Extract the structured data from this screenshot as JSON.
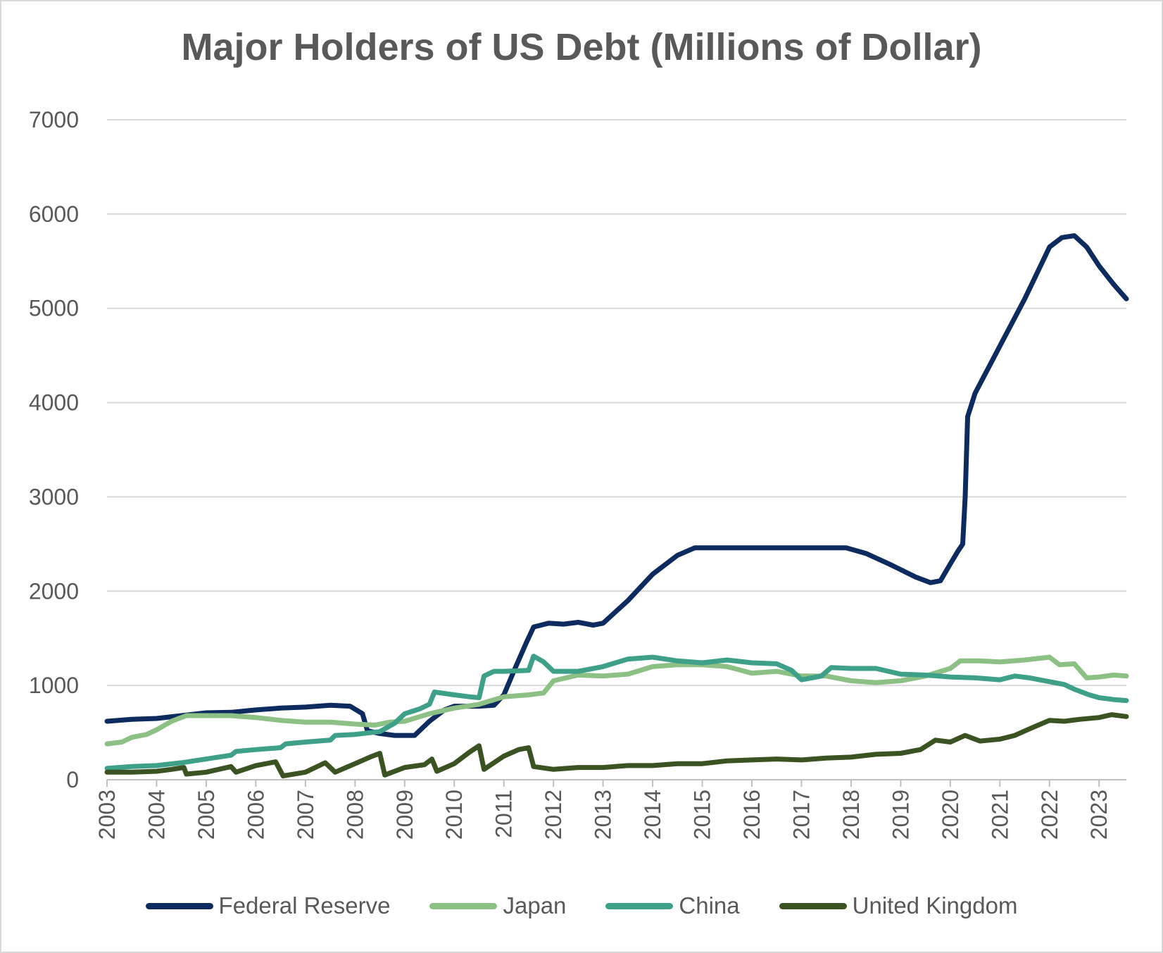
{
  "chart_data": {
    "type": "line",
    "title": "Major Holders of US Debt (Millions of Dollar)",
    "xlabel": "",
    "ylabel": "",
    "ylim": [
      0,
      7000
    ],
    "xlim": [
      2003,
      2023.55
    ],
    "yticks": [
      "0",
      "1000",
      "2000",
      "3000",
      "4000",
      "5000",
      "6000",
      "7000"
    ],
    "xticks": [
      "2003",
      "2004",
      "2005",
      "2006",
      "2007",
      "2008",
      "2009",
      "2010",
      "2011",
      "2012",
      "2013",
      "2014",
      "2015",
      "2016",
      "2017",
      "2018",
      "2019",
      "2020",
      "2021",
      "2022",
      "2023"
    ],
    "grid": true,
    "legend_position": "bottom",
    "series": [
      {
        "name": "Federal Reserve",
        "color": "#0d2b5e",
        "points": [
          [
            2003,
            620
          ],
          [
            2003.5,
            640
          ],
          [
            2004,
            650
          ],
          [
            2004.5,
            680
          ],
          [
            2005,
            710
          ],
          [
            2005.5,
            715
          ],
          [
            2006,
            740
          ],
          [
            2006.5,
            760
          ],
          [
            2007,
            770
          ],
          [
            2007.5,
            790
          ],
          [
            2007.9,
            780
          ],
          [
            2008.15,
            700
          ],
          [
            2008.25,
            520
          ],
          [
            2008.5,
            490
          ],
          [
            2008.8,
            470
          ],
          [
            2009.2,
            470
          ],
          [
            2009.5,
            620
          ],
          [
            2009.8,
            740
          ],
          [
            2010,
            780
          ],
          [
            2010.5,
            780
          ],
          [
            2010.8,
            790
          ],
          [
            2011,
            900
          ],
          [
            2011.2,
            1150
          ],
          [
            2011.45,
            1450
          ],
          [
            2011.6,
            1620
          ],
          [
            2011.9,
            1660
          ],
          [
            2012.2,
            1650
          ],
          [
            2012.5,
            1670
          ],
          [
            2012.8,
            1640
          ],
          [
            2013,
            1660
          ],
          [
            2013.5,
            1900
          ],
          [
            2014,
            2180
          ],
          [
            2014.5,
            2380
          ],
          [
            2014.85,
            2460
          ],
          [
            2015,
            2460
          ],
          [
            2016,
            2460
          ],
          [
            2017,
            2460
          ],
          [
            2017.9,
            2460
          ],
          [
            2018.3,
            2400
          ],
          [
            2018.8,
            2280
          ],
          [
            2019.3,
            2150
          ],
          [
            2019.6,
            2090
          ],
          [
            2019.8,
            2110
          ],
          [
            2020,
            2290
          ],
          [
            2020.15,
            2420
          ],
          [
            2020.25,
            2500
          ],
          [
            2020.3,
            3000
          ],
          [
            2020.35,
            3850
          ],
          [
            2020.5,
            4100
          ],
          [
            2021,
            4600
          ],
          [
            2021.5,
            5100
          ],
          [
            2021.8,
            5430
          ],
          [
            2022,
            5650
          ],
          [
            2022.25,
            5750
          ],
          [
            2022.5,
            5770
          ],
          [
            2022.75,
            5650
          ],
          [
            2023,
            5450
          ],
          [
            2023.3,
            5250
          ],
          [
            2023.55,
            5100
          ]
        ]
      },
      {
        "name": "Japan",
        "color": "#8cc084",
        "points": [
          [
            2003,
            380
          ],
          [
            2003.3,
            400
          ],
          [
            2003.5,
            450
          ],
          [
            2003.8,
            480
          ],
          [
            2004,
            530
          ],
          [
            2004.3,
            620
          ],
          [
            2004.6,
            680
          ],
          [
            2005,
            680
          ],
          [
            2005.5,
            680
          ],
          [
            2006,
            660
          ],
          [
            2006.5,
            630
          ],
          [
            2007,
            610
          ],
          [
            2007.5,
            610
          ],
          [
            2008,
            590
          ],
          [
            2008.4,
            580
          ],
          [
            2008.7,
            610
          ],
          [
            2009,
            620
          ],
          [
            2009.5,
            700
          ],
          [
            2010,
            760
          ],
          [
            2010.5,
            800
          ],
          [
            2011,
            880
          ],
          [
            2011.5,
            900
          ],
          [
            2011.8,
            920
          ],
          [
            2012,
            1050
          ],
          [
            2012.5,
            1110
          ],
          [
            2013,
            1100
          ],
          [
            2013.5,
            1120
          ],
          [
            2014,
            1200
          ],
          [
            2014.5,
            1220
          ],
          [
            2015,
            1220
          ],
          [
            2015.5,
            1200
          ],
          [
            2016,
            1130
          ],
          [
            2016.5,
            1150
          ],
          [
            2017,
            1100
          ],
          [
            2017.5,
            1100
          ],
          [
            2018,
            1050
          ],
          [
            2018.5,
            1030
          ],
          [
            2019,
            1050
          ],
          [
            2019.5,
            1100
          ],
          [
            2020,
            1180
          ],
          [
            2020.2,
            1260
          ],
          [
            2020.6,
            1260
          ],
          [
            2021,
            1250
          ],
          [
            2021.5,
            1270
          ],
          [
            2022,
            1300
          ],
          [
            2022.2,
            1220
          ],
          [
            2022.5,
            1230
          ],
          [
            2022.75,
            1080
          ],
          [
            2023,
            1090
          ],
          [
            2023.3,
            1110
          ],
          [
            2023.55,
            1100
          ]
        ]
      },
      {
        "name": "China",
        "color": "#3fa08a",
        "points": [
          [
            2003,
            120
          ],
          [
            2003.5,
            140
          ],
          [
            2004,
            150
          ],
          [
            2004.5,
            180
          ],
          [
            2005,
            220
          ],
          [
            2005.5,
            260
          ],
          [
            2005.6,
            300
          ],
          [
            2006,
            320
          ],
          [
            2006.5,
            340
          ],
          [
            2006.6,
            380
          ],
          [
            2007,
            400
          ],
          [
            2007.5,
            420
          ],
          [
            2007.6,
            470
          ],
          [
            2008,
            480
          ],
          [
            2008.5,
            510
          ],
          [
            2008.8,
            600
          ],
          [
            2009,
            700
          ],
          [
            2009.3,
            750
          ],
          [
            2009.5,
            800
          ],
          [
            2009.6,
            930
          ],
          [
            2010,
            900
          ],
          [
            2010.3,
            880
          ],
          [
            2010.5,
            870
          ],
          [
            2010.6,
            1100
          ],
          [
            2010.8,
            1150
          ],
          [
            2011,
            1150
          ],
          [
            2011.5,
            1160
          ],
          [
            2011.6,
            1310
          ],
          [
            2011.8,
            1250
          ],
          [
            2012,
            1150
          ],
          [
            2012.5,
            1150
          ],
          [
            2013,
            1200
          ],
          [
            2013.5,
            1280
          ],
          [
            2014,
            1300
          ],
          [
            2014.5,
            1260
          ],
          [
            2015,
            1240
          ],
          [
            2015.5,
            1270
          ],
          [
            2016,
            1240
          ],
          [
            2016.5,
            1230
          ],
          [
            2016.8,
            1160
          ],
          [
            2017,
            1060
          ],
          [
            2017.4,
            1100
          ],
          [
            2017.6,
            1190
          ],
          [
            2018,
            1180
          ],
          [
            2018.5,
            1180
          ],
          [
            2019,
            1120
          ],
          [
            2019.5,
            1110
          ],
          [
            2020,
            1090
          ],
          [
            2020.5,
            1080
          ],
          [
            2021,
            1060
          ],
          [
            2021.3,
            1100
          ],
          [
            2021.6,
            1080
          ],
          [
            2022,
            1040
          ],
          [
            2022.3,
            1010
          ],
          [
            2022.5,
            960
          ],
          [
            2022.8,
            900
          ],
          [
            2023,
            870
          ],
          [
            2023.3,
            850
          ],
          [
            2023.55,
            840
          ]
        ]
      },
      {
        "name": "United Kingdom",
        "color": "#3b5323",
        "points": [
          [
            2003,
            80
          ],
          [
            2003.5,
            80
          ],
          [
            2004,
            90
          ],
          [
            2004.3,
            110
          ],
          [
            2004.55,
            130
          ],
          [
            2004.6,
            60
          ],
          [
            2005,
            80
          ],
          [
            2005.5,
            140
          ],
          [
            2005.6,
            80
          ],
          [
            2006,
            150
          ],
          [
            2006.4,
            190
          ],
          [
            2006.55,
            40
          ],
          [
            2007,
            80
          ],
          [
            2007.4,
            180
          ],
          [
            2007.6,
            80
          ],
          [
            2008,
            170
          ],
          [
            2008.3,
            240
          ],
          [
            2008.5,
            280
          ],
          [
            2008.6,
            50
          ],
          [
            2009,
            130
          ],
          [
            2009.4,
            160
          ],
          [
            2009.55,
            220
          ],
          [
            2009.65,
            90
          ],
          [
            2010,
            170
          ],
          [
            2010.3,
            290
          ],
          [
            2010.5,
            360
          ],
          [
            2010.6,
            110
          ],
          [
            2011,
            250
          ],
          [
            2011.3,
            320
          ],
          [
            2011.5,
            340
          ],
          [
            2011.6,
            140
          ],
          [
            2012,
            110
          ],
          [
            2012.5,
            130
          ],
          [
            2013,
            130
          ],
          [
            2013.5,
            150
          ],
          [
            2014,
            150
          ],
          [
            2014.5,
            170
          ],
          [
            2015,
            170
          ],
          [
            2015.5,
            200
          ],
          [
            2016,
            210
          ],
          [
            2016.5,
            220
          ],
          [
            2017,
            210
          ],
          [
            2017.5,
            230
          ],
          [
            2018,
            240
          ],
          [
            2018.5,
            270
          ],
          [
            2019,
            280
          ],
          [
            2019.4,
            320
          ],
          [
            2019.7,
            420
          ],
          [
            2020,
            400
          ],
          [
            2020.3,
            470
          ],
          [
            2020.6,
            410
          ],
          [
            2021,
            430
          ],
          [
            2021.3,
            470
          ],
          [
            2021.6,
            540
          ],
          [
            2022,
            630
          ],
          [
            2022.3,
            620
          ],
          [
            2022.6,
            640
          ],
          [
            2023,
            660
          ],
          [
            2023.25,
            690
          ],
          [
            2023.55,
            670
          ]
        ]
      }
    ]
  }
}
